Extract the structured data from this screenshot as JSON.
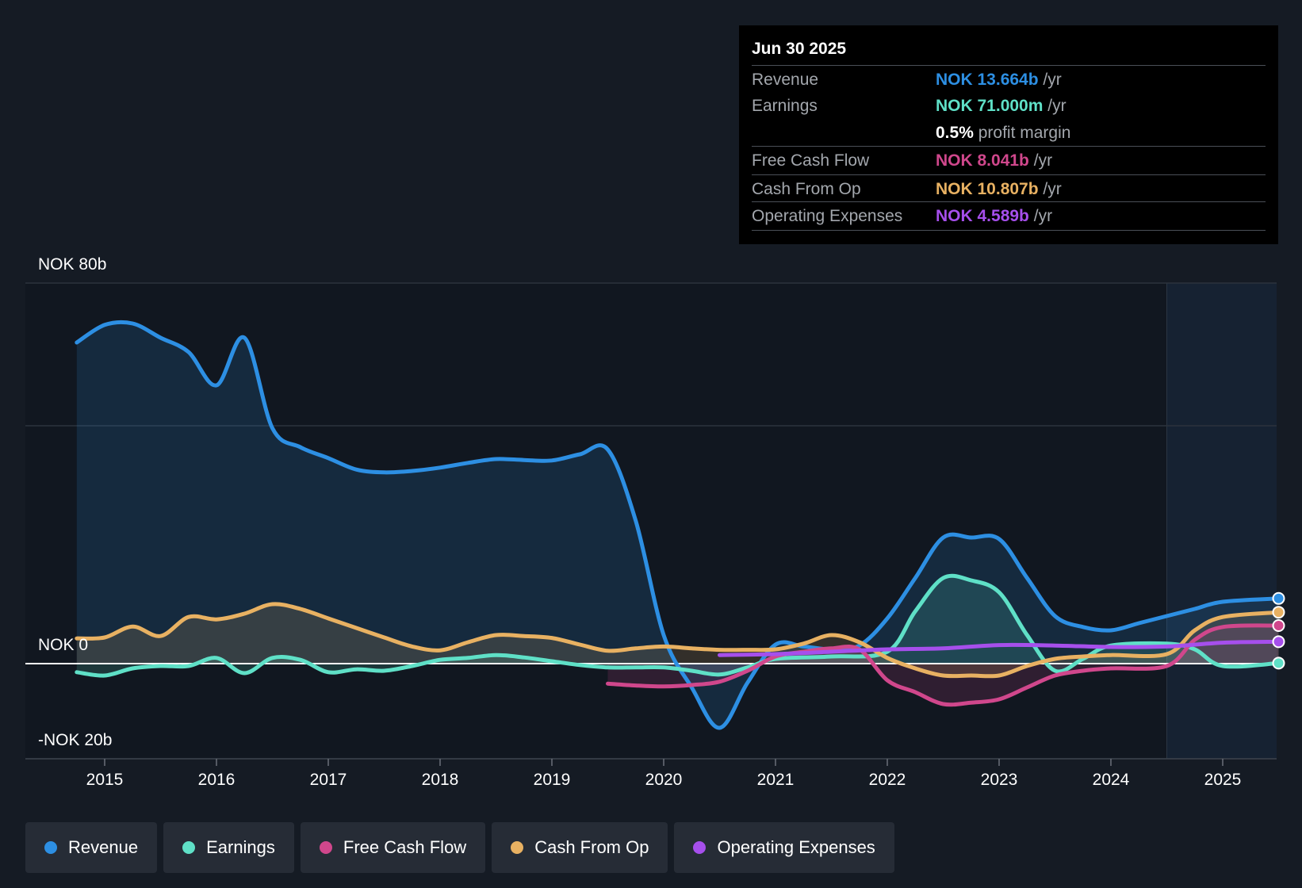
{
  "tooltip": {
    "date": "Jun 30 2025",
    "rows": [
      {
        "label": "Revenue",
        "value": "NOK 13.664b",
        "unit": "/yr",
        "color": "#2d8fe3"
      },
      {
        "label": "Earnings",
        "value": "NOK 71.000m",
        "unit": "/yr",
        "color": "#5fe0c7"
      },
      {
        "label": "",
        "value": "0.5%",
        "unit": "profit margin",
        "color": "#ffffff"
      },
      {
        "label": "Free Cash Flow",
        "value": "NOK 8.041b",
        "unit": "/yr",
        "color": "#d0478c"
      },
      {
        "label": "Cash From Op",
        "value": "NOK 10.807b",
        "unit": "/yr",
        "color": "#e8b162"
      },
      {
        "label": "Operating Expenses",
        "value": "NOK 4.589b",
        "unit": "/yr",
        "color": "#a64fec"
      }
    ]
  },
  "legend": [
    {
      "label": "Revenue",
      "color": "#2d8fe3"
    },
    {
      "label": "Earnings",
      "color": "#5fe0c7"
    },
    {
      "label": "Free Cash Flow",
      "color": "#d0478c"
    },
    {
      "label": "Cash From Op",
      "color": "#e8b162"
    },
    {
      "label": "Operating Expenses",
      "color": "#a64fec"
    }
  ],
  "chart_data": {
    "type": "area",
    "title": "",
    "xlabel": "",
    "ylabel": "",
    "y_labels": {
      "top": "NOK 80b",
      "zero": "NOK 0",
      "bottom": "-NOK 20b"
    },
    "xlim": [
      2014.5,
      2025.5
    ],
    "ylim": [
      -20,
      80
    ],
    "x_ticks": [
      {
        "value": 2015,
        "label": "2015"
      },
      {
        "value": 2016,
        "label": "2016"
      },
      {
        "value": 2017,
        "label": "2017"
      },
      {
        "value": 2018,
        "label": "2018"
      },
      {
        "value": 2019,
        "label": "2019"
      },
      {
        "value": 2020,
        "label": "2020"
      },
      {
        "value": 2021,
        "label": "2021"
      },
      {
        "value": 2022,
        "label": "2022"
      },
      {
        "value": 2023,
        "label": "2023"
      },
      {
        "value": 2024,
        "label": "2024"
      },
      {
        "value": 2025,
        "label": "2025"
      }
    ],
    "y_gridlines": [
      80,
      50,
      0,
      -20
    ],
    "forecast_start": 2024.5,
    "series": [
      {
        "name": "Revenue",
        "color": "#2d8fe3",
        "fill": true,
        "points": [
          [
            2014.75,
            67.5
          ],
          [
            2015,
            71.2
          ],
          [
            2015.25,
            71.5
          ],
          [
            2015.5,
            68.5
          ],
          [
            2015.75,
            65.5
          ],
          [
            2016,
            58.5
          ],
          [
            2016.25,
            68.5
          ],
          [
            2016.5,
            49.5
          ],
          [
            2016.75,
            45.5
          ],
          [
            2017,
            43.2
          ],
          [
            2017.25,
            40.8
          ],
          [
            2017.5,
            40.2
          ],
          [
            2017.75,
            40.5
          ],
          [
            2018,
            41.2
          ],
          [
            2018.25,
            42.2
          ],
          [
            2018.5,
            43
          ],
          [
            2018.75,
            42.8
          ],
          [
            2019,
            42.7
          ],
          [
            2019.25,
            44
          ],
          [
            2019.5,
            45
          ],
          [
            2019.75,
            30
          ],
          [
            2020,
            6
          ],
          [
            2020.25,
            -5
          ],
          [
            2020.5,
            -13.5
          ],
          [
            2020.75,
            -4
          ],
          [
            2021,
            4
          ],
          [
            2021.25,
            3.6
          ],
          [
            2021.5,
            3
          ],
          [
            2021.75,
            3.8
          ],
          [
            2022,
            9.5
          ],
          [
            2022.25,
            18
          ],
          [
            2022.5,
            26.5
          ],
          [
            2022.75,
            26.5
          ],
          [
            2023,
            26.2
          ],
          [
            2023.25,
            18
          ],
          [
            2023.5,
            10
          ],
          [
            2023.75,
            7.7
          ],
          [
            2024,
            7
          ],
          [
            2024.25,
            8.5
          ],
          [
            2024.5,
            10
          ],
          [
            2024.75,
            11.5
          ],
          [
            2025,
            13
          ],
          [
            2025.5,
            13.7
          ]
        ]
      },
      {
        "name": "Earnings",
        "color": "#5fe0c7",
        "fill": true,
        "points": [
          [
            2014.75,
            -1.8
          ],
          [
            2015,
            -2.5
          ],
          [
            2015.25,
            -1
          ],
          [
            2015.5,
            -0.5
          ],
          [
            2015.75,
            -0.5
          ],
          [
            2016,
            1.2
          ],
          [
            2016.25,
            -2
          ],
          [
            2016.5,
            1.2
          ],
          [
            2016.75,
            0.8
          ],
          [
            2017,
            -1.8
          ],
          [
            2017.25,
            -1.2
          ],
          [
            2017.5,
            -1.5
          ],
          [
            2017.75,
            -0.5
          ],
          [
            2018,
            0.8
          ],
          [
            2018.25,
            1.2
          ],
          [
            2018.5,
            1.8
          ],
          [
            2018.75,
            1.3
          ],
          [
            2019,
            0.5
          ],
          [
            2019.25,
            -0.3
          ],
          [
            2019.5,
            -0.8
          ],
          [
            2019.75,
            -0.8
          ],
          [
            2020,
            -0.8
          ],
          [
            2020.25,
            -1.5
          ],
          [
            2020.5,
            -2.3
          ],
          [
            2020.75,
            -0.8
          ],
          [
            2021,
            1
          ],
          [
            2021.5,
            1.5
          ],
          [
            2022,
            2.5
          ],
          [
            2022.25,
            11
          ],
          [
            2022.5,
            18
          ],
          [
            2022.75,
            17.5
          ],
          [
            2023,
            15
          ],
          [
            2023.25,
            6
          ],
          [
            2023.5,
            -1.5
          ],
          [
            2023.75,
            1
          ],
          [
            2024,
            3.8
          ],
          [
            2024.5,
            4.2
          ],
          [
            2024.75,
            3
          ],
          [
            2025,
            -0.5
          ],
          [
            2025.5,
            0.1
          ]
        ]
      },
      {
        "name": "Free Cash Flow",
        "color": "#d0478c",
        "fill": true,
        "points": [
          [
            2019.5,
            -4.2
          ],
          [
            2019.75,
            -4.6
          ],
          [
            2020,
            -4.8
          ],
          [
            2020.25,
            -4.5
          ],
          [
            2020.5,
            -3.8
          ],
          [
            2020.75,
            -1.5
          ],
          [
            2021,
            1.5
          ],
          [
            2021.25,
            2.5
          ],
          [
            2021.5,
            3.2
          ],
          [
            2021.75,
            3
          ],
          [
            2022,
            -3.5
          ],
          [
            2022.25,
            -6
          ],
          [
            2022.5,
            -8.5
          ],
          [
            2022.75,
            -8.2
          ],
          [
            2023,
            -7.5
          ],
          [
            2023.25,
            -5
          ],
          [
            2023.5,
            -2.5
          ],
          [
            2023.75,
            -1.5
          ],
          [
            2024,
            -1
          ],
          [
            2024.5,
            -0.5
          ],
          [
            2024.75,
            5
          ],
          [
            2025,
            7.7
          ],
          [
            2025.5,
            8
          ]
        ]
      },
      {
        "name": "Cash From Op",
        "color": "#e8b162",
        "fill": true,
        "points": [
          [
            2014.75,
            5.3
          ],
          [
            2015,
            5.5
          ],
          [
            2015.25,
            7.8
          ],
          [
            2015.5,
            5.8
          ],
          [
            2015.75,
            9.8
          ],
          [
            2016,
            9.3
          ],
          [
            2016.25,
            10.5
          ],
          [
            2016.5,
            12.5
          ],
          [
            2016.75,
            11.5
          ],
          [
            2017,
            9.5
          ],
          [
            2017.25,
            7.5
          ],
          [
            2017.5,
            5.5
          ],
          [
            2017.75,
            3.6
          ],
          [
            2018,
            2.8
          ],
          [
            2018.25,
            4.5
          ],
          [
            2018.5,
            6
          ],
          [
            2018.75,
            5.8
          ],
          [
            2019,
            5.4
          ],
          [
            2019.25,
            4
          ],
          [
            2019.5,
            2.7
          ],
          [
            2019.75,
            3.2
          ],
          [
            2020,
            3.6
          ],
          [
            2020.25,
            3.2
          ],
          [
            2020.5,
            2.9
          ],
          [
            2020.75,
            2.9
          ],
          [
            2021,
            3
          ],
          [
            2021.25,
            4.2
          ],
          [
            2021.5,
            6
          ],
          [
            2021.75,
            4.5
          ],
          [
            2022,
            1.2
          ],
          [
            2022.25,
            -1
          ],
          [
            2022.5,
            -2.5
          ],
          [
            2022.75,
            -2.5
          ],
          [
            2023,
            -2.5
          ],
          [
            2023.25,
            -0.5
          ],
          [
            2023.5,
            1
          ],
          [
            2023.75,
            1.5
          ],
          [
            2024,
            1.8
          ],
          [
            2024.5,
            2
          ],
          [
            2024.75,
            7
          ],
          [
            2025,
            9.8
          ],
          [
            2025.5,
            10.8
          ]
        ]
      },
      {
        "name": "Operating Expenses",
        "color": "#a64fec",
        "fill": false,
        "points": [
          [
            2020.5,
            1.8
          ],
          [
            2021,
            2
          ],
          [
            2021.5,
            2.5
          ],
          [
            2022,
            3
          ],
          [
            2022.5,
            3.2
          ],
          [
            2023,
            3.9
          ],
          [
            2023.5,
            3.8
          ],
          [
            2024,
            3.5
          ],
          [
            2024.5,
            3.6
          ],
          [
            2025,
            4.4
          ],
          [
            2025.5,
            4.6
          ]
        ]
      }
    ]
  }
}
